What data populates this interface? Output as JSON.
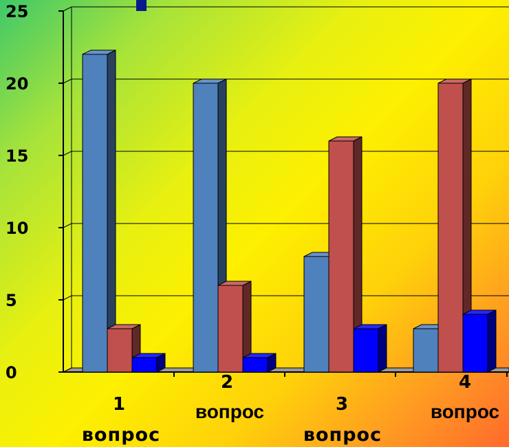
{
  "chart_data": {
    "type": "bar",
    "style": "3d-clustered-column",
    "categories": [
      {
        "num": "1",
        "word": "вопрос"
      },
      {
        "num": "2",
        "word": "вопрос"
      },
      {
        "num": "3",
        "word": "вопрос"
      },
      {
        "num": "4",
        "word": "вопрос"
      }
    ],
    "series": [
      {
        "color": "#4f81bd",
        "values": [
          22,
          20,
          8,
          3
        ]
      },
      {
        "color": "#c0504d",
        "values": [
          3,
          6,
          16,
          20
        ]
      },
      {
        "color": "#0000ff",
        "values": [
          1,
          1,
          3,
          4
        ]
      }
    ],
    "ylim": [
      0,
      25
    ],
    "yticks": [
      "0",
      "5",
      "10",
      "15",
      "20",
      "25"
    ],
    "grid": true,
    "legend": "none"
  }
}
